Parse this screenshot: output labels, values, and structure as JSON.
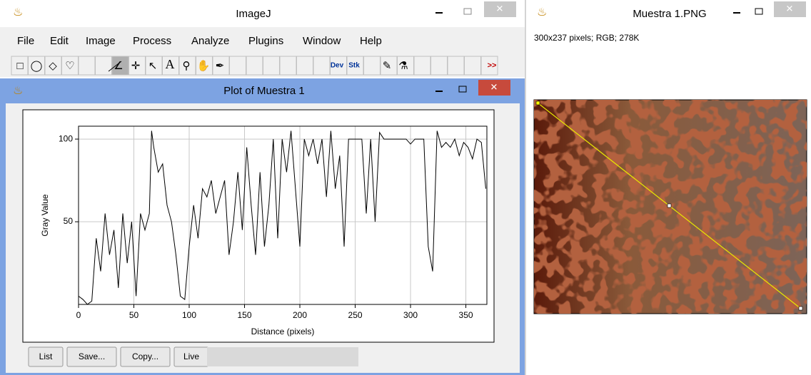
{
  "main_window": {
    "title": "ImageJ",
    "menu": [
      "File",
      "Edit",
      "Image",
      "Process",
      "Analyze",
      "Plugins",
      "Window",
      "Help"
    ],
    "toolbar": [
      "A",
      "Dev",
      "Stk",
      ">>"
    ]
  },
  "plot_window": {
    "title": "Plot of Muestra 1",
    "chart_data": {
      "type": "line",
      "x_label": "Distance (pixels)",
      "y_label": "Gray Value",
      "x": [
        0,
        4,
        8,
        12,
        16,
        20,
        24,
        28,
        32,
        36,
        40,
        44,
        48,
        52,
        56,
        60,
        64,
        66,
        68,
        72,
        76,
        80,
        84,
        88,
        92,
        96,
        100,
        104,
        108,
        112,
        116,
        120,
        124,
        128,
        132,
        136,
        140,
        144,
        148,
        152,
        156,
        160,
        164,
        168,
        172,
        176,
        180,
        184,
        188,
        192,
        196,
        200,
        204,
        208,
        212,
        216,
        220,
        224,
        228,
        232,
        236,
        240,
        244,
        248,
        252,
        256,
        260,
        264,
        268,
        272,
        276,
        280,
        284,
        288,
        292,
        296,
        300,
        304,
        308,
        312,
        316,
        320,
        324,
        328,
        332,
        336,
        340,
        344,
        348,
        352,
        356,
        360,
        364,
        368
      ],
      "series": [
        {
          "color": "#000000",
          "values": [
            5,
            3,
            0,
            2,
            40,
            20,
            55,
            30,
            45,
            10,
            55,
            25,
            50,
            5,
            55,
            45,
            55,
            105,
            95,
            80,
            85,
            60,
            50,
            30,
            5,
            3,
            35,
            60,
            40,
            70,
            65,
            75,
            55,
            65,
            75,
            30,
            50,
            80,
            45,
            95,
            60,
            30,
            80,
            35,
            60,
            100,
            40,
            100,
            80,
            105,
            70,
            35,
            100,
            90,
            100,
            85,
            100,
            65,
            105,
            70,
            90,
            35,
            100,
            100,
            100,
            100,
            55,
            100,
            50,
            104,
            100,
            100,
            100,
            100,
            100,
            100,
            97,
            100,
            100,
            100,
            35,
            20,
            105,
            95,
            98,
            95,
            100,
            90,
            98,
            95,
            88,
            100,
            98,
            70
          ]
        }
      ],
      "xlim": [
        0,
        369
      ],
      "ylim": [
        0,
        107.8
      ],
      "xticks": [
        0,
        50,
        100,
        150,
        200,
        250,
        300,
        350
      ],
      "yticks": [
        50,
        100
      ],
      "grid": true
    },
    "buttons": [
      "List",
      "Save...",
      "Copy...",
      "Live"
    ]
  },
  "image_window": {
    "title": "Muestra 1.PNG",
    "info": "300x237 pixels; RGB; 278K"
  }
}
